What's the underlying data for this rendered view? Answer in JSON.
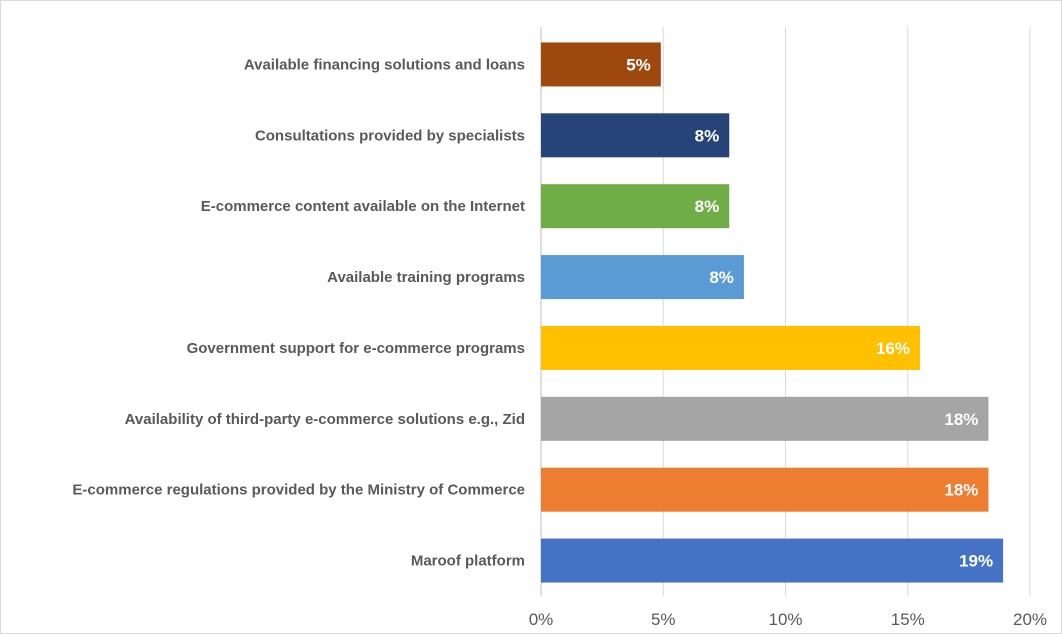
{
  "chart_data": {
    "type": "bar",
    "orientation": "horizontal",
    "title": "",
    "xlabel": "",
    "ylabel": "",
    "xlim": [
      0,
      20
    ],
    "x_ticks": [
      "0%",
      "5%",
      "10%",
      "15%",
      "20%"
    ],
    "grid": true,
    "legend": "none",
    "categories": [
      "Available financing solutions and loans",
      "Consultations provided by specialists",
      "E-commerce content available on the Internet",
      "Available training programs",
      "Government support for e-commerce programs",
      "Availability of third-party e-commerce solutions e.g., Zid",
      "E-commerce regulations provided by the Ministry of Commerce",
      "Maroof platform"
    ],
    "values": [
      4.9,
      7.7,
      7.7,
      8.3,
      15.5,
      18.3,
      18.3,
      18.9
    ],
    "data_labels": [
      "5%",
      "8%",
      "8%",
      "8%",
      "16%",
      "18%",
      "18%",
      "19%"
    ],
    "colors": [
      "#9e480e",
      "#264478",
      "#70ad47",
      "#5b9bd5",
      "#ffc000",
      "#a5a5a5",
      "#ed7d31",
      "#4472c4"
    ]
  }
}
